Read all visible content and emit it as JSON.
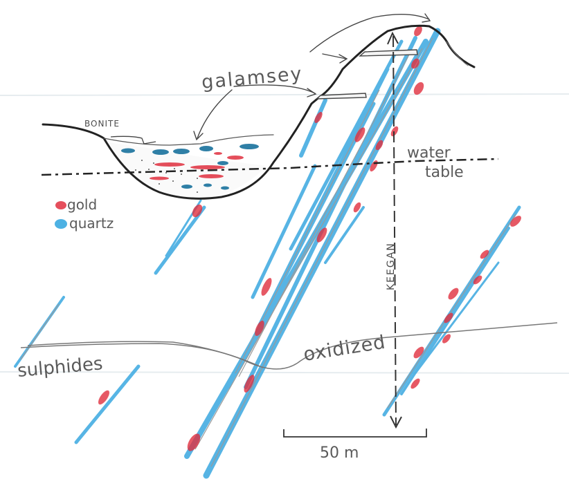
{
  "labels": {
    "galamsey": "galamsey",
    "bonite": "BONITE",
    "water_table_line1": "water",
    "water_table_line2": "table",
    "legend_gold": "gold",
    "legend_quartz": "quartz",
    "keegan": "KEEGAN",
    "oxidized": "oxidized",
    "sulphides": "sulphides",
    "scale": "50 m"
  },
  "colors": {
    "gold": "#e0303f",
    "quartz": "#3aa8e0",
    "pencil": "#2a2a2a",
    "grey_pencil": "#8c8c8c"
  },
  "icons": {
    "legend_gold_swatch": "red-pencil-blob",
    "legend_quartz_swatch": "blue-pencil-blob"
  }
}
